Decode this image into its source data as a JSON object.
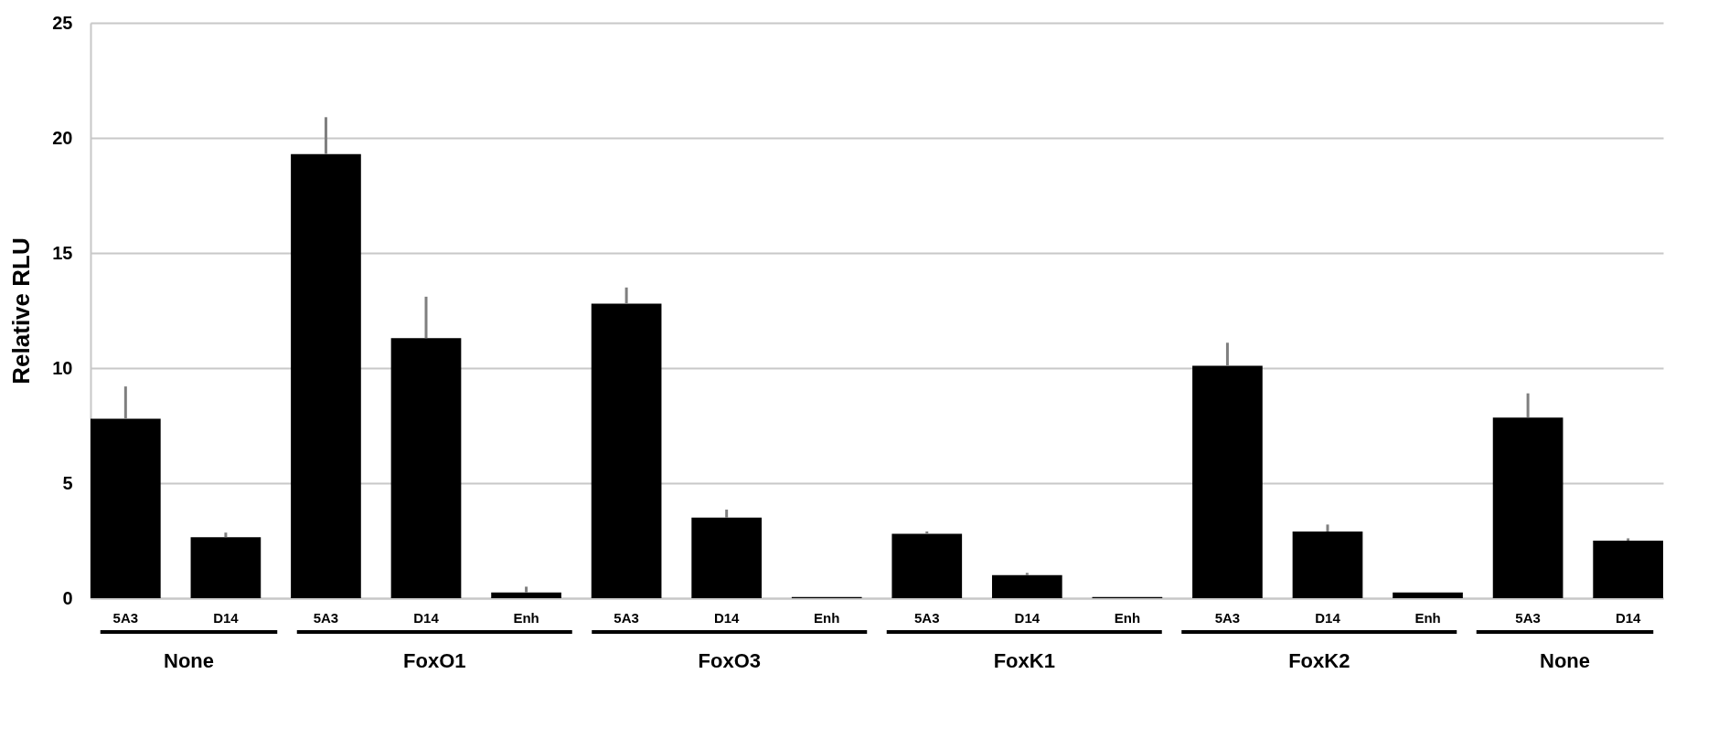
{
  "chart_data": {
    "type": "bar",
    "ylabel": "Relative RLU",
    "categories": [
      "5A3",
      "D14",
      "5A3",
      "D14",
      "Enh",
      "5A3",
      "D14",
      "Enh",
      "5A3",
      "D14",
      "Enh",
      "5A3",
      "D14",
      "Enh",
      "5A3",
      "D14"
    ],
    "values": [
      7.8,
      2.65,
      19.3,
      11.3,
      0.25,
      12.8,
      3.5,
      0.05,
      2.8,
      1.0,
      0.05,
      10.1,
      2.9,
      0.25,
      7.85,
      2.5
    ],
    "errors": [
      [
        7.8,
        9.2
      ],
      [
        2.65,
        2.85
      ],
      [
        19.3,
        20.9
      ],
      [
        11.3,
        13.1
      ],
      [
        0.25,
        0.5
      ],
      [
        12.8,
        13.5
      ],
      [
        3.5,
        3.85
      ],
      null,
      [
        2.8,
        2.9
      ],
      [
        1.0,
        1.1
      ],
      null,
      [
        10.1,
        11.1
      ],
      [
        2.9,
        3.2
      ],
      null,
      [
        7.85,
        8.9
      ],
      [
        2.5,
        2.6
      ]
    ],
    "color": "#000000",
    "ylim": [
      0,
      25
    ],
    "yticks": [
      0,
      5,
      10,
      15,
      20,
      25
    ],
    "grid": "y",
    "annotations": [
      "None",
      "FoxO1",
      "FoxO3",
      "FoxK1",
      "FoxK2",
      "None"
    ]
  }
}
